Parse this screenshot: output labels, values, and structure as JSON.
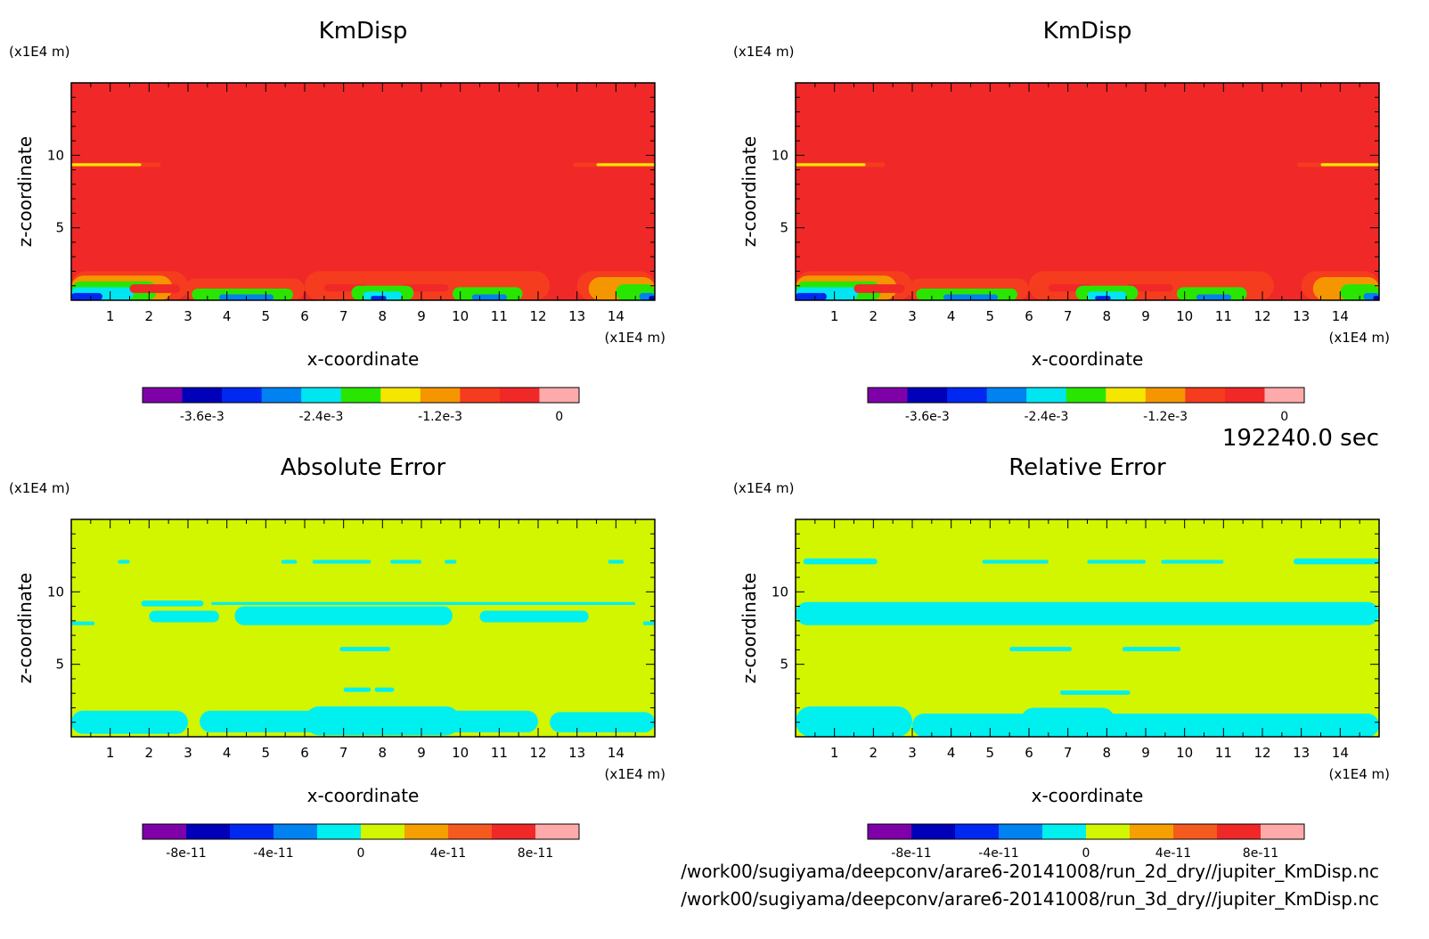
{
  "time_label": "192240.0 sec",
  "files": [
    "/work00/sugiyama/deepconv/arare6-20141008/run_2d_dry//jupiter_KmDisp.nc",
    "/work00/sugiyama/deepconv/arare6-20141008/run_3d_dry//jupiter_KmDisp.nc"
  ],
  "chart_data": [
    {
      "type": "heatmap",
      "title": "KmDisp",
      "xlabel": "x-coordinate",
      "ylabel": "z-coordinate",
      "xunit": "(x1E4 m)",
      "yunit": "(x1E4 m)",
      "xlim": [
        0,
        15
      ],
      "ylim": [
        0,
        15
      ],
      "xticks": [
        "1",
        "2",
        "3",
        "4",
        "5",
        "6",
        "7",
        "8",
        "9",
        "10",
        "11",
        "12",
        "13",
        "14"
      ],
      "yticks": [
        "5",
        "10"
      ],
      "background_level": 9,
      "colorbar": {
        "colors": [
          "#7f00a8",
          "#0000b8",
          "#0028f0",
          "#0082f0",
          "#00e6f0",
          "#28e600",
          "#f5e600",
          "#f59600",
          "#f53c1e",
          "#f02828",
          "#ffaaaa"
        ],
        "labels": [
          "-3.6e-3",
          "-2.4e-3",
          "-1.2e-3",
          "0"
        ]
      },
      "features": [
        {
          "level": 8,
          "x": [
            0,
            2.3
          ],
          "y": [
            9.2,
            9.5
          ]
        },
        {
          "level": 6,
          "x": [
            0,
            1.8
          ],
          "y": [
            9.25,
            9.45
          ]
        },
        {
          "level": 8,
          "x": [
            12.9,
            15
          ],
          "y": [
            9.2,
            9.5
          ]
        },
        {
          "level": 6,
          "x": [
            13.5,
            15
          ],
          "y": [
            9.25,
            9.45
          ]
        },
        {
          "level": 8,
          "x": [
            0,
            3.0
          ],
          "y": [
            0,
            2.0
          ]
        },
        {
          "level": 7,
          "x": [
            0,
            2.6
          ],
          "y": [
            0,
            1.7
          ]
        },
        {
          "level": 5,
          "x": [
            0,
            2.2
          ],
          "y": [
            0,
            1.3
          ]
        },
        {
          "level": 4,
          "x": [
            0,
            1.6
          ],
          "y": [
            0,
            0.9
          ]
        },
        {
          "level": 2,
          "x": [
            0,
            0.8
          ],
          "y": [
            0,
            0.5
          ]
        },
        {
          "level": 9,
          "x": [
            1.5,
            2.8
          ],
          "y": [
            0.5,
            1.1
          ]
        },
        {
          "level": 8,
          "x": [
            2.9,
            6.0
          ],
          "y": [
            0,
            1.5
          ]
        },
        {
          "level": 5,
          "x": [
            3.1,
            5.7
          ],
          "y": [
            0,
            0.8
          ]
        },
        {
          "level": 3,
          "x": [
            3.8,
            5.2
          ],
          "y": [
            0,
            0.4
          ]
        },
        {
          "level": 8,
          "x": [
            6.0,
            12.3
          ],
          "y": [
            0,
            2.0
          ]
        },
        {
          "level": 9,
          "x": [
            6.5,
            7.6
          ],
          "y": [
            0.6,
            1.1
          ]
        },
        {
          "level": 9,
          "x": [
            8.5,
            9.7
          ],
          "y": [
            0.6,
            1.1
          ]
        },
        {
          "level": 5,
          "x": [
            7.2,
            8.8
          ],
          "y": [
            0,
            1.0
          ]
        },
        {
          "level": 4,
          "x": [
            7.5,
            8.5
          ],
          "y": [
            0,
            0.6
          ]
        },
        {
          "level": 2,
          "x": [
            7.7,
            8.1
          ],
          "y": [
            0,
            0.3
          ]
        },
        {
          "level": 5,
          "x": [
            9.8,
            11.6
          ],
          "y": [
            0,
            0.9
          ]
        },
        {
          "level": 3,
          "x": [
            10.3,
            11.2
          ],
          "y": [
            0,
            0.4
          ]
        },
        {
          "level": 8,
          "x": [
            13.0,
            15
          ],
          "y": [
            0,
            2.0
          ]
        },
        {
          "level": 7,
          "x": [
            13.3,
            15
          ],
          "y": [
            0,
            1.6
          ]
        },
        {
          "level": 5,
          "x": [
            14.0,
            15
          ],
          "y": [
            0,
            1.1
          ]
        },
        {
          "level": 3,
          "x": [
            14.6,
            15
          ],
          "y": [
            0,
            0.5
          ]
        },
        {
          "level": 1,
          "x": [
            14.85,
            15
          ],
          "y": [
            0,
            0.3
          ]
        }
      ]
    },
    {
      "type": "heatmap",
      "title": "KmDisp",
      "xlabel": "x-coordinate",
      "ylabel": "z-coordinate",
      "xunit": "(x1E4 m)",
      "yunit": "(x1E4 m)",
      "xlim": [
        0,
        15
      ],
      "ylim": [
        0,
        15
      ],
      "xticks": [
        "1",
        "2",
        "3",
        "4",
        "5",
        "6",
        "7",
        "8",
        "9",
        "10",
        "11",
        "12",
        "13",
        "14"
      ],
      "yticks": [
        "5",
        "10"
      ],
      "background_level": 9,
      "colorbar": {
        "colors": [
          "#7f00a8",
          "#0000b8",
          "#0028f0",
          "#0082f0",
          "#00e6f0",
          "#28e600",
          "#f5e600",
          "#f59600",
          "#f53c1e",
          "#f02828",
          "#ffaaaa"
        ],
        "labels": [
          "-3.6e-3",
          "-2.4e-3",
          "-1.2e-3",
          "0"
        ]
      },
      "features": [
        {
          "level": 8,
          "x": [
            0,
            2.3
          ],
          "y": [
            9.2,
            9.5
          ]
        },
        {
          "level": 6,
          "x": [
            0,
            1.8
          ],
          "y": [
            9.25,
            9.45
          ]
        },
        {
          "level": 8,
          "x": [
            12.9,
            15
          ],
          "y": [
            9.2,
            9.5
          ]
        },
        {
          "level": 6,
          "x": [
            13.5,
            15
          ],
          "y": [
            9.25,
            9.45
          ]
        },
        {
          "level": 8,
          "x": [
            0,
            3.0
          ],
          "y": [
            0,
            2.0
          ]
        },
        {
          "level": 7,
          "x": [
            0,
            2.6
          ],
          "y": [
            0,
            1.7
          ]
        },
        {
          "level": 5,
          "x": [
            0,
            2.2
          ],
          "y": [
            0,
            1.3
          ]
        },
        {
          "level": 4,
          "x": [
            0,
            1.6
          ],
          "y": [
            0,
            0.9
          ]
        },
        {
          "level": 2,
          "x": [
            0,
            0.8
          ],
          "y": [
            0,
            0.5
          ]
        },
        {
          "level": 9,
          "x": [
            1.5,
            2.8
          ],
          "y": [
            0.5,
            1.1
          ]
        },
        {
          "level": 8,
          "x": [
            2.9,
            6.0
          ],
          "y": [
            0,
            1.5
          ]
        },
        {
          "level": 5,
          "x": [
            3.1,
            5.7
          ],
          "y": [
            0,
            0.8
          ]
        },
        {
          "level": 3,
          "x": [
            3.8,
            5.2
          ],
          "y": [
            0,
            0.4
          ]
        },
        {
          "level": 8,
          "x": [
            6.0,
            12.3
          ],
          "y": [
            0,
            2.0
          ]
        },
        {
          "level": 9,
          "x": [
            6.5,
            7.6
          ],
          "y": [
            0.6,
            1.1
          ]
        },
        {
          "level": 9,
          "x": [
            8.5,
            9.7
          ],
          "y": [
            0.6,
            1.1
          ]
        },
        {
          "level": 5,
          "x": [
            7.2,
            8.8
          ],
          "y": [
            0,
            1.0
          ]
        },
        {
          "level": 4,
          "x": [
            7.5,
            8.5
          ],
          "y": [
            0,
            0.6
          ]
        },
        {
          "level": 2,
          "x": [
            7.7,
            8.1
          ],
          "y": [
            0,
            0.3
          ]
        },
        {
          "level": 5,
          "x": [
            9.8,
            11.6
          ],
          "y": [
            0,
            0.9
          ]
        },
        {
          "level": 3,
          "x": [
            10.3,
            11.2
          ],
          "y": [
            0,
            0.4
          ]
        },
        {
          "level": 8,
          "x": [
            13.0,
            15
          ],
          "y": [
            0,
            2.0
          ]
        },
        {
          "level": 7,
          "x": [
            13.3,
            15
          ],
          "y": [
            0,
            1.6
          ]
        },
        {
          "level": 5,
          "x": [
            14.0,
            15
          ],
          "y": [
            0,
            1.1
          ]
        },
        {
          "level": 3,
          "x": [
            14.6,
            15
          ],
          "y": [
            0,
            0.5
          ]
        },
        {
          "level": 1,
          "x": [
            14.85,
            15
          ],
          "y": [
            0,
            0.3
          ]
        }
      ]
    },
    {
      "type": "heatmap",
      "title": "Absolute Error",
      "xlabel": "x-coordinate",
      "ylabel": "z-coordinate",
      "xunit": "(x1E4 m)",
      "yunit": "(x1E4 m)",
      "xlim": [
        0,
        15
      ],
      "ylim": [
        0,
        15
      ],
      "xticks": [
        "1",
        "2",
        "3",
        "4",
        "5",
        "6",
        "7",
        "8",
        "9",
        "10",
        "11",
        "12",
        "13",
        "14"
      ],
      "yticks": [
        "5",
        "10"
      ],
      "background_level": 5,
      "colorbar": {
        "colors": [
          "#7f00a8",
          "#0000b8",
          "#0028f0",
          "#0082f0",
          "#00f0f0",
          "#d2f500",
          "#f5a000",
          "#f55a1e",
          "#f02828",
          "#ffaaaa"
        ],
        "labels": [
          "-8e-11",
          "-4e-11",
          "0",
          "4e-11",
          "8e-11"
        ]
      },
      "features": [
        {
          "level": 4,
          "x": [
            0,
            3.0
          ],
          "y": [
            0.2,
            1.8
          ]
        },
        {
          "level": 4,
          "x": [
            3.3,
            7.2
          ],
          "y": [
            0.3,
            1.8
          ]
        },
        {
          "level": 4,
          "x": [
            6.0,
            10.0
          ],
          "y": [
            0.1,
            2.1
          ]
        },
        {
          "level": 4,
          "x": [
            9.5,
            12.0
          ],
          "y": [
            0.3,
            1.8
          ]
        },
        {
          "level": 4,
          "x": [
            12.3,
            15
          ],
          "y": [
            0.3,
            1.7
          ]
        },
        {
          "level": 4,
          "x": [
            7.0,
            7.7
          ],
          "y": [
            3.1,
            3.4
          ]
        },
        {
          "level": 4,
          "x": [
            7.8,
            8.3
          ],
          "y": [
            3.1,
            3.4
          ]
        },
        {
          "level": 4,
          "x": [
            6.9,
            8.2
          ],
          "y": [
            5.9,
            6.2
          ]
        },
        {
          "level": 4,
          "x": [
            2.0,
            3.8
          ],
          "y": [
            7.9,
            8.7
          ]
        },
        {
          "level": 4,
          "x": [
            4.2,
            9.8
          ],
          "y": [
            7.7,
            9.0
          ]
        },
        {
          "level": 4,
          "x": [
            10.5,
            13.3
          ],
          "y": [
            7.9,
            8.7
          ]
        },
        {
          "level": 4,
          "x": [
            0,
            0.6
          ],
          "y": [
            7.7,
            7.95
          ]
        },
        {
          "level": 4,
          "x": [
            14.7,
            15
          ],
          "y": [
            7.7,
            7.95
          ]
        },
        {
          "level": 4,
          "x": [
            1.8,
            3.4
          ],
          "y": [
            9.0,
            9.4
          ]
        },
        {
          "level": 4,
          "x": [
            3.6,
            14.5
          ],
          "y": [
            9.1,
            9.3
          ]
        },
        {
          "level": 4,
          "x": [
            1.2,
            1.5
          ],
          "y": [
            11.95,
            12.2
          ]
        },
        {
          "level": 4,
          "x": [
            5.4,
            5.8
          ],
          "y": [
            11.95,
            12.2
          ]
        },
        {
          "level": 4,
          "x": [
            6.2,
            7.7
          ],
          "y": [
            11.95,
            12.2
          ]
        },
        {
          "level": 4,
          "x": [
            8.2,
            9.0
          ],
          "y": [
            11.95,
            12.2
          ]
        },
        {
          "level": 4,
          "x": [
            9.6,
            9.9
          ],
          "y": [
            11.95,
            12.2
          ]
        },
        {
          "level": 4,
          "x": [
            13.8,
            14.2
          ],
          "y": [
            11.95,
            12.2
          ]
        }
      ]
    },
    {
      "type": "heatmap",
      "title": "Relative Error",
      "xlabel": "x-coordinate",
      "ylabel": "z-coordinate",
      "xunit": "(x1E4 m)",
      "yunit": "(x1E4 m)",
      "xlim": [
        0,
        15
      ],
      "ylim": [
        0,
        15
      ],
      "xticks": [
        "1",
        "2",
        "3",
        "4",
        "5",
        "6",
        "7",
        "8",
        "9",
        "10",
        "11",
        "12",
        "13",
        "14"
      ],
      "yticks": [
        "5",
        "10"
      ],
      "background_level": 5,
      "colorbar": {
        "colors": [
          "#7f00a8",
          "#0000b8",
          "#0028f0",
          "#0082f0",
          "#00f0f0",
          "#d2f500",
          "#f5a000",
          "#f55a1e",
          "#f02828",
          "#ffaaaa"
        ],
        "labels": [
          "-8e-11",
          "-4e-11",
          "0",
          "4e-11",
          "8e-11"
        ]
      },
      "features": [
        {
          "level": 4,
          "x": [
            0,
            3.0
          ],
          "y": [
            0.0,
            2.1
          ]
        },
        {
          "level": 4,
          "x": [
            3.0,
            15
          ],
          "y": [
            0.0,
            1.6
          ]
        },
        {
          "level": 4,
          "x": [
            5.8,
            8.2
          ],
          "y": [
            0.3,
            2.0
          ]
        },
        {
          "level": 4,
          "x": [
            9.0,
            12.0
          ],
          "y": [
            0.2,
            1.6
          ]
        },
        {
          "level": 4,
          "x": [
            6.8,
            8.6
          ],
          "y": [
            2.9,
            3.2
          ]
        },
        {
          "level": 4,
          "x": [
            5.5,
            7.1
          ],
          "y": [
            5.9,
            6.2
          ]
        },
        {
          "level": 4,
          "x": [
            8.4,
            9.9
          ],
          "y": [
            5.9,
            6.2
          ]
        },
        {
          "level": 4,
          "x": [
            0,
            15
          ],
          "y": [
            7.7,
            9.3
          ]
        },
        {
          "level": 4,
          "x": [
            0.2,
            2.1
          ],
          "y": [
            11.9,
            12.3
          ]
        },
        {
          "level": 4,
          "x": [
            4.8,
            6.5
          ],
          "y": [
            11.95,
            12.2
          ]
        },
        {
          "level": 4,
          "x": [
            7.5,
            9.0
          ],
          "y": [
            11.95,
            12.2
          ]
        },
        {
          "level": 4,
          "x": [
            9.4,
            11.0
          ],
          "y": [
            11.95,
            12.2
          ]
        },
        {
          "level": 4,
          "x": [
            12.8,
            15
          ],
          "y": [
            11.9,
            12.3
          ]
        }
      ]
    }
  ]
}
